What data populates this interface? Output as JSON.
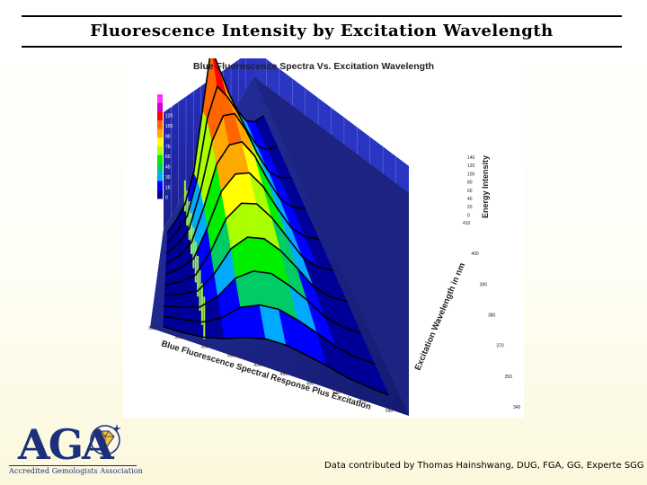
{
  "slide": {
    "title": "Fluorescence Intensity by Excitation Wavelength",
    "credit": "Data contributed by Thomas Hainshwang, DUG, FGA, GG, Experte SGG"
  },
  "logo": {
    "acronym": "AGA",
    "name": "Accredited Gemologists Association",
    "color": "#1c2f7a"
  },
  "chart_data": {
    "type": "surface3d",
    "title": "Blue Fluorescence Spectra Vs. Excitation Wavelength",
    "xlabel": "Blue Fluorescence Spectral Response Plus Excitation",
    "ylabel": "Excitation Wavelength in nm",
    "zlabel": "Energy Intensity",
    "x_ticks": [
      "350",
      "360",
      "380",
      "400",
      "420",
      "450",
      "490",
      "540",
      "570",
      "540"
    ],
    "y_ticks": [
      "410",
      "400",
      "390",
      "380",
      "370",
      "350",
      "340"
    ],
    "z_ticks": [
      "140",
      "120",
      "100",
      "80",
      "60",
      "40",
      "20",
      "0"
    ],
    "colorbar_ticks": [
      "150",
      "135",
      "120",
      "105",
      "90",
      "75",
      "60",
      "45",
      "30",
      "15",
      "0"
    ],
    "colorbar_colors": [
      "#ff33ff",
      "#cc00cc",
      "#ff0000",
      "#ff6600",
      "#ffaa00",
      "#ffff00",
      "#aaff00",
      "#00ee00",
      "#00cc66",
      "#00aaff",
      "#0000ff",
      "#000099"
    ],
    "slices": [
      {
        "peak": 140,
        "profile": [
          0,
          2,
          8,
          30,
          85,
          140,
          105,
          70,
          40,
          18,
          6,
          1
        ]
      },
      {
        "peak": 120,
        "profile": [
          0,
          3,
          10,
          40,
          95,
          120,
          100,
          75,
          45,
          20,
          7,
          1
        ]
      },
      {
        "peak": 110,
        "profile": [
          0,
          3,
          12,
          45,
          90,
          110,
          105,
          80,
          48,
          22,
          8,
          1
        ]
      },
      {
        "peak": 100,
        "profile": [
          0,
          3,
          12,
          45,
          85,
          100,
          98,
          78,
          48,
          22,
          8,
          1
        ]
      },
      {
        "peak": 90,
        "profile": [
          0,
          3,
          10,
          40,
          75,
          90,
          88,
          70,
          44,
          20,
          7,
          1
        ]
      },
      {
        "peak": 80,
        "profile": [
          0,
          2,
          8,
          32,
          65,
          80,
          78,
          62,
          40,
          18,
          6,
          1
        ]
      },
      {
        "peak": 65,
        "profile": [
          0,
          2,
          6,
          25,
          52,
          65,
          64,
          52,
          34,
          15,
          5,
          1
        ]
      },
      {
        "peak": 50,
        "profile": [
          0,
          1,
          4,
          18,
          40,
          50,
          50,
          40,
          27,
          12,
          4,
          0
        ]
      },
      {
        "peak": 35,
        "profile": [
          0,
          1,
          3,
          12,
          28,
          35,
          35,
          28,
          19,
          9,
          3,
          0
        ]
      },
      {
        "peak": 20,
        "profile": [
          0,
          0,
          2,
          7,
          15,
          20,
          20,
          16,
          11,
          5,
          2,
          0
        ]
      }
    ]
  }
}
